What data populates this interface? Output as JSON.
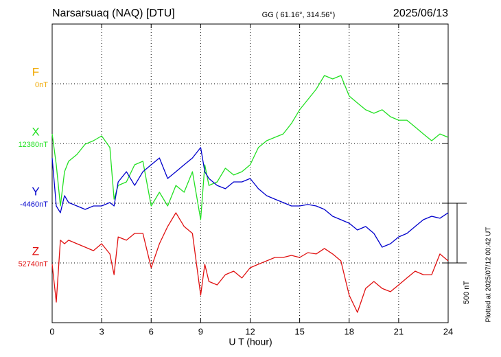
{
  "chart_data": {
    "type": "line",
    "title": "Narsarsuaq (NAQ)  [DTU]",
    "subtitle": "GG ( 61.16°, 314.56°)",
    "date": "2025/06/13",
    "x_label": "U T (hour)",
    "plot_note": "Plotted at 2025/07/12 00:42 UT",
    "scale": {
      "value": 500,
      "label": "500 nT"
    },
    "xlim": [
      0,
      24
    ],
    "xticks": [
      0,
      3,
      6,
      9,
      12,
      15,
      18,
      21,
      24
    ],
    "grid": true,
    "f_trace": {
      "name": "F",
      "color": "#f0a800",
      "baseline": {
        "value": 0,
        "label": "0nT"
      }
    },
    "x": [
      0,
      0.25,
      0.5,
      0.75,
      1,
      1.5,
      2,
      2.5,
      3,
      3.5,
      3.75,
      4,
      4.5,
      5,
      5.5,
      6,
      6.5,
      7,
      7.5,
      8,
      8.5,
      9,
      9.25,
      9.5,
      10,
      10.5,
      11,
      11.5,
      12,
      12.5,
      13,
      13.5,
      14,
      14.5,
      15,
      15.5,
      16,
      16.5,
      17,
      17.5,
      18,
      18.5,
      19,
      19.5,
      20,
      20.5,
      21,
      21.5,
      22,
      22.5,
      23,
      23.5,
      24
    ],
    "series": [
      {
        "name": "X",
        "color": "#22e022",
        "baseline": {
          "value": 12380,
          "label": "12380nT"
        },
        "values": [
          12460,
          12202,
          11857,
          12144,
          12231,
          12288,
          12374,
          12403,
          12443,
          12346,
          11914,
          12029,
          12058,
          12202,
          12231,
          11857,
          11972,
          11857,
          12029,
          11972,
          12144,
          11742,
          12202,
          12029,
          12058,
          12173,
          12116,
          12144,
          12202,
          12346,
          12403,
          12432,
          12460,
          12547,
          12662,
          12748,
          12834,
          12949,
          12920,
          12949,
          12777,
          12719,
          12662,
          12633,
          12662,
          12604,
          12575,
          12575,
          12518,
          12460,
          12403,
          12460,
          12432
        ]
      },
      {
        "name": "Y",
        "color": "#0000cc",
        "baseline": {
          "value": -4460,
          "label": "-4460nT"
        },
        "values": [
          -4081,
          -4483,
          -4540,
          -4397,
          -4454,
          -4483,
          -4512,
          -4483,
          -4483,
          -4454,
          -4483,
          -4282,
          -4196,
          -4311,
          -4196,
          -4138,
          -4081,
          -4253,
          -4196,
          -4138,
          -4081,
          -3994,
          -4196,
          -4253,
          -4311,
          -4339,
          -4282,
          -4282,
          -4253,
          -4339,
          -4397,
          -4426,
          -4454,
          -4483,
          -4483,
          -4471,
          -4483,
          -4512,
          -4569,
          -4598,
          -4627,
          -4684,
          -4655,
          -4713,
          -4828,
          -4799,
          -4742,
          -4713,
          -4655,
          -4598,
          -4569,
          -4586,
          -4540
        ]
      },
      {
        "name": "Z",
        "color": "#e01010",
        "baseline": {
          "value": 52740,
          "label": "52740nT"
        },
        "values": [
          52729,
          52412,
          52930,
          52901,
          52930,
          52901,
          52872,
          52843,
          52901,
          52815,
          52642,
          52958,
          52930,
          52987,
          52987,
          52700,
          52901,
          53045,
          53160,
          53045,
          52987,
          52470,
          52729,
          52585,
          52556,
          52642,
          52671,
          52614,
          52700,
          52729,
          52757,
          52786,
          52786,
          52803,
          52786,
          52826,
          52815,
          52861,
          52815,
          52757,
          52470,
          52326,
          52527,
          52585,
          52527,
          52499,
          52556,
          52614,
          52671,
          52642,
          52642,
          52815,
          52757
        ]
      }
    ]
  }
}
